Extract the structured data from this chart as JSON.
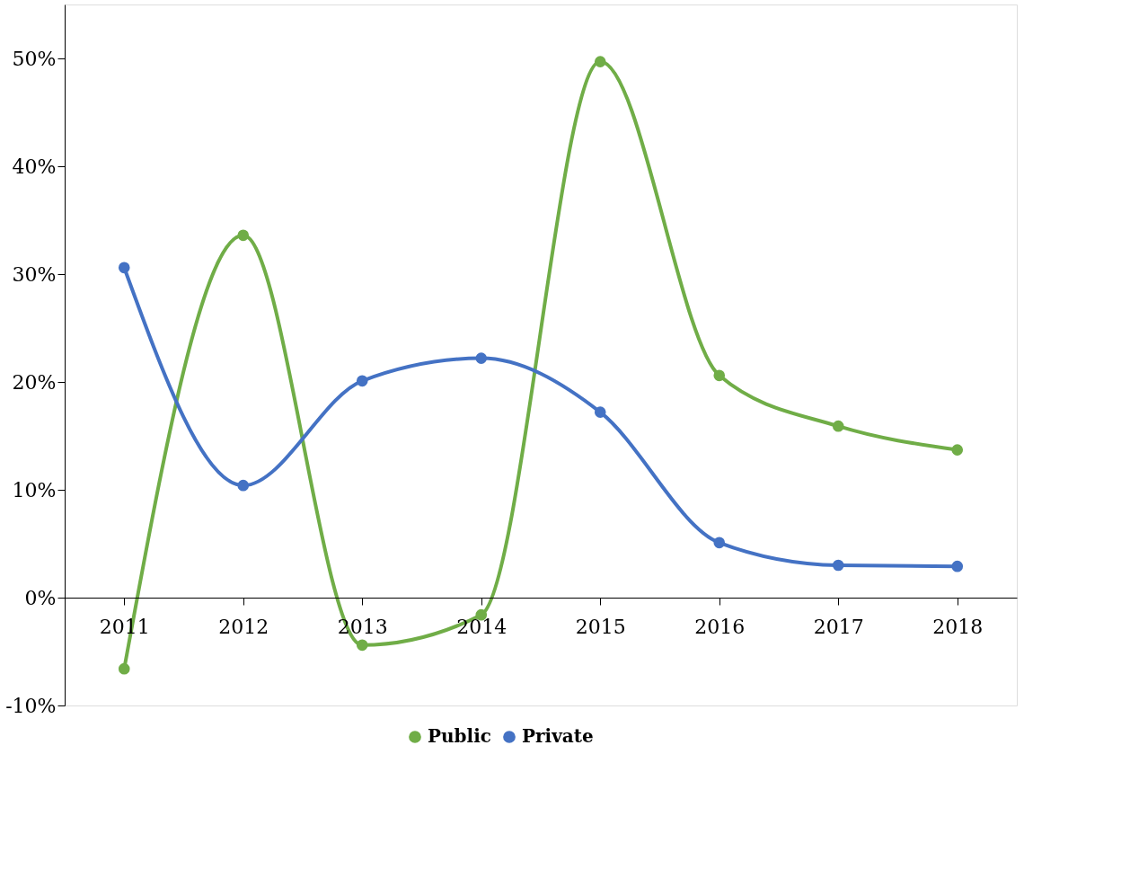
{
  "chart_data": {
    "type": "line",
    "categories": [
      "2011",
      "2012",
      "2013",
      "2014",
      "2015",
      "2016",
      "2017",
      "2018"
    ],
    "series": [
      {
        "name": "Public",
        "color": "#70ad47",
        "values": [
          -6.6,
          33.6,
          -4.4,
          -1.6,
          49.7,
          20.6,
          15.9,
          13.7
        ]
      },
      {
        "name": "Private",
        "color": "#4472c4",
        "values": [
          30.6,
          10.4,
          20.1,
          22.2,
          17.2,
          5.1,
          3.0,
          2.9
        ]
      }
    ],
    "ylim": [
      -10,
      55
    ],
    "yticks": [
      {
        "value": -10,
        "label": "-10%"
      },
      {
        "value": 0,
        "label": "0%"
      },
      {
        "value": 10,
        "label": "10%"
      },
      {
        "value": 20,
        "label": "20%"
      },
      {
        "value": 30,
        "label": "30%"
      },
      {
        "value": 40,
        "label": "40%"
      },
      {
        "value": 50,
        "label": "50%"
      }
    ],
    "grid": false,
    "legend": "bottom",
    "marker": "circle",
    "line_style": "solid"
  }
}
